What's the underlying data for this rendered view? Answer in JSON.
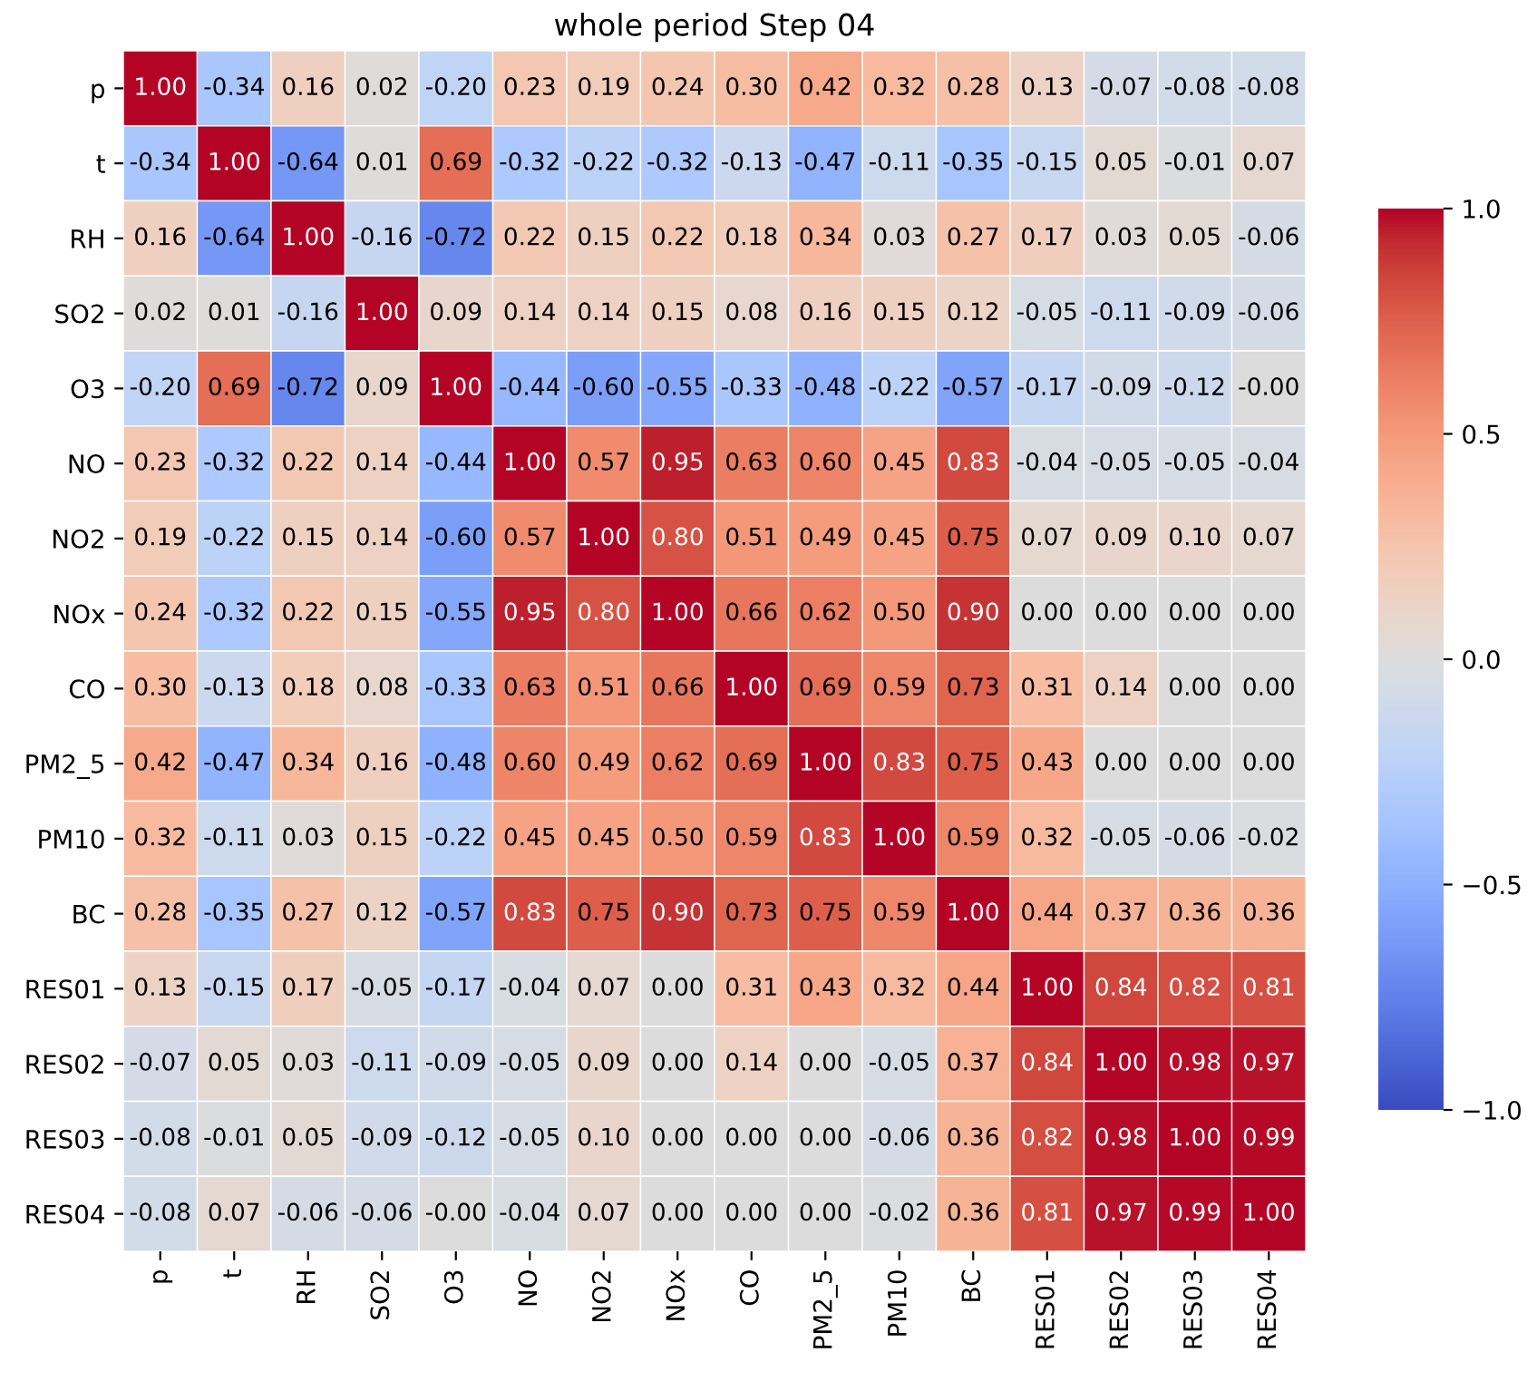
{
  "chart_data": {
    "type": "heatmap",
    "title": "whole period Step 04",
    "categories": [
      "p",
      "t",
      "RH",
      "SO2",
      "O3",
      "NO",
      "NO2",
      "NOx",
      "CO",
      "PM2_5",
      "PM10",
      "BC",
      "RES01",
      "RES02",
      "RES03",
      "RES04"
    ],
    "y_categories": [
      "p",
      "t",
      "RH",
      "SO2",
      "O3",
      "NO",
      "NO2",
      "NOx",
      "CO",
      "PM2_5",
      "PM10",
      "BC",
      "RES01",
      "RES02",
      "RES03",
      "RES04"
    ],
    "cells": [
      [
        1.0,
        -0.34,
        0.16,
        0.02,
        -0.2,
        0.23,
        0.19,
        0.24,
        0.3,
        0.42,
        0.32,
        0.28,
        0.13,
        -0.07,
        -0.08,
        -0.08
      ],
      [
        -0.34,
        1.0,
        -0.64,
        0.01,
        0.69,
        -0.32,
        -0.22,
        -0.32,
        -0.13,
        -0.47,
        -0.11,
        -0.35,
        -0.15,
        0.05,
        -0.01,
        0.07
      ],
      [
        0.16,
        -0.64,
        1.0,
        -0.16,
        -0.72,
        0.22,
        0.15,
        0.22,
        0.18,
        0.34,
        0.03,
        0.27,
        0.17,
        0.03,
        0.05,
        -0.06
      ],
      [
        0.02,
        0.01,
        -0.16,
        1.0,
        0.09,
        0.14,
        0.14,
        0.15,
        0.08,
        0.16,
        0.15,
        0.12,
        -0.05,
        -0.11,
        -0.09,
        -0.06
      ],
      [
        -0.2,
        0.69,
        -0.72,
        0.09,
        1.0,
        -0.44,
        -0.6,
        -0.55,
        -0.33,
        -0.48,
        -0.22,
        -0.57,
        -0.17,
        -0.09,
        -0.12,
        -0.0
      ],
      [
        0.23,
        -0.32,
        0.22,
        0.14,
        -0.44,
        1.0,
        0.57,
        0.95,
        0.63,
        0.6,
        0.45,
        0.83,
        -0.04,
        -0.05,
        -0.05,
        -0.04
      ],
      [
        0.19,
        -0.22,
        0.15,
        0.14,
        -0.6,
        0.57,
        1.0,
        0.8,
        0.51,
        0.49,
        0.45,
        0.75,
        0.07,
        0.09,
        0.1,
        0.07
      ],
      [
        0.24,
        -0.32,
        0.22,
        0.15,
        -0.55,
        0.95,
        0.8,
        1.0,
        0.66,
        0.62,
        0.5,
        0.9,
        0.0,
        0.0,
        0.0,
        0.0
      ],
      [
        0.3,
        -0.13,
        0.18,
        0.08,
        -0.33,
        0.63,
        0.51,
        0.66,
        1.0,
        0.69,
        0.59,
        0.73,
        0.31,
        0.14,
        0.0,
        0.0
      ],
      [
        0.42,
        -0.47,
        0.34,
        0.16,
        -0.48,
        0.6,
        0.49,
        0.62,
        0.69,
        1.0,
        0.83,
        0.75,
        0.43,
        0.0,
        0.0,
        0.0
      ],
      [
        0.32,
        -0.11,
        0.03,
        0.15,
        -0.22,
        0.45,
        0.45,
        0.5,
        0.59,
        0.83,
        1.0,
        0.59,
        0.32,
        -0.05,
        -0.06,
        -0.02
      ],
      [
        0.28,
        -0.35,
        0.27,
        0.12,
        -0.57,
        0.83,
        0.75,
        0.9,
        0.73,
        0.75,
        0.59,
        1.0,
        0.44,
        0.37,
        0.36,
        0.36
      ],
      [
        0.13,
        -0.15,
        0.17,
        -0.05,
        -0.17,
        -0.04,
        0.07,
        0.0,
        0.31,
        0.43,
        0.32,
        0.44,
        1.0,
        0.84,
        0.82,
        0.81
      ],
      [
        -0.07,
        0.05,
        0.03,
        -0.11,
        -0.09,
        -0.05,
        0.09,
        0.0,
        0.14,
        0.0,
        -0.05,
        0.37,
        0.84,
        1.0,
        0.98,
        0.97
      ],
      [
        -0.08,
        -0.01,
        0.05,
        -0.09,
        -0.12,
        -0.05,
        0.1,
        0.0,
        0.0,
        0.0,
        -0.06,
        0.36,
        0.82,
        0.98,
        1.0,
        0.99
      ],
      [
        -0.08,
        0.07,
        -0.06,
        -0.06,
        -0.0,
        -0.04,
        0.07,
        0.0,
        0.0,
        0.0,
        -0.02,
        0.36,
        0.81,
        0.97,
        0.99,
        1.0
      ]
    ],
    "cell_labels": [
      [
        "1.00",
        "-0.34",
        "0.16",
        "0.02",
        "-0.20",
        "0.23",
        "0.19",
        "0.24",
        "0.30",
        "0.42",
        "0.32",
        "0.28",
        "0.13",
        "-0.07",
        "-0.08",
        "-0.08"
      ],
      [
        "-0.34",
        "1.00",
        "-0.64",
        "0.01",
        "0.69",
        "-0.32",
        "-0.22",
        "-0.32",
        "-0.13",
        "-0.47",
        "-0.11",
        "-0.35",
        "-0.15",
        "0.05",
        "-0.01",
        "0.07"
      ],
      [
        "0.16",
        "-0.64",
        "1.00",
        "-0.16",
        "-0.72",
        "0.22",
        "0.15",
        "0.22",
        "0.18",
        "0.34",
        "0.03",
        "0.27",
        "0.17",
        "0.03",
        "0.05",
        "-0.06"
      ],
      [
        "0.02",
        "0.01",
        "-0.16",
        "1.00",
        "0.09",
        "0.14",
        "0.14",
        "0.15",
        "0.08",
        "0.16",
        "0.15",
        "0.12",
        "-0.05",
        "-0.11",
        "-0.09",
        "-0.06"
      ],
      [
        "-0.20",
        "0.69",
        "-0.72",
        "0.09",
        "1.00",
        "-0.44",
        "-0.60",
        "-0.55",
        "-0.33",
        "-0.48",
        "-0.22",
        "-0.57",
        "-0.17",
        "-0.09",
        "-0.12",
        "-0.00"
      ],
      [
        "0.23",
        "-0.32",
        "0.22",
        "0.14",
        "-0.44",
        "1.00",
        "0.57",
        "0.95",
        "0.63",
        "0.60",
        "0.45",
        "0.83",
        "-0.04",
        "-0.05",
        "-0.05",
        "-0.04"
      ],
      [
        "0.19",
        "-0.22",
        "0.15",
        "0.14",
        "-0.60",
        "0.57",
        "1.00",
        "0.80",
        "0.51",
        "0.49",
        "0.45",
        "0.75",
        "0.07",
        "0.09",
        "0.10",
        "0.07"
      ],
      [
        "0.24",
        "-0.32",
        "0.22",
        "0.15",
        "-0.55",
        "0.95",
        "0.80",
        "1.00",
        "0.66",
        "0.62",
        "0.50",
        "0.90",
        "0.00",
        "0.00",
        "0.00",
        "0.00"
      ],
      [
        "0.30",
        "-0.13",
        "0.18",
        "0.08",
        "-0.33",
        "0.63",
        "0.51",
        "0.66",
        "1.00",
        "0.69",
        "0.59",
        "0.73",
        "0.31",
        "0.14",
        "0.00",
        "0.00"
      ],
      [
        "0.42",
        "-0.47",
        "0.34",
        "0.16",
        "-0.48",
        "0.60",
        "0.49",
        "0.62",
        "0.69",
        "1.00",
        "0.83",
        "0.75",
        "0.43",
        "0.00",
        "0.00",
        "0.00"
      ],
      [
        "0.32",
        "-0.11",
        "0.03",
        "0.15",
        "-0.22",
        "0.45",
        "0.45",
        "0.50",
        "0.59",
        "0.83",
        "1.00",
        "0.59",
        "0.32",
        "-0.05",
        "-0.06",
        "-0.02"
      ],
      [
        "0.28",
        "-0.35",
        "0.27",
        "0.12",
        "-0.57",
        "0.83",
        "0.75",
        "0.90",
        "0.73",
        "0.75",
        "0.59",
        "1.00",
        "0.44",
        "0.37",
        "0.36",
        "0.36"
      ],
      [
        "0.13",
        "-0.15",
        "0.17",
        "-0.05",
        "-0.17",
        "-0.04",
        "0.07",
        "0.00",
        "0.31",
        "0.43",
        "0.32",
        "0.44",
        "1.00",
        "0.84",
        "0.82",
        "0.81"
      ],
      [
        "-0.07",
        "0.05",
        "0.03",
        "-0.11",
        "-0.09",
        "-0.05",
        "0.09",
        "0.00",
        "0.14",
        "0.00",
        "-0.05",
        "0.37",
        "0.84",
        "1.00",
        "0.98",
        "0.97"
      ],
      [
        "-0.08",
        "-0.01",
        "0.05",
        "-0.09",
        "-0.12",
        "-0.05",
        "0.10",
        "0.00",
        "0.00",
        "0.00",
        "-0.06",
        "0.36",
        "0.82",
        "0.98",
        "1.00",
        "0.99"
      ],
      [
        "-0.08",
        "0.07",
        "-0.06",
        "-0.06",
        "-0.00",
        "-0.04",
        "0.07",
        "0.00",
        "0.00",
        "0.00",
        "-0.02",
        "0.36",
        "0.81",
        "0.97",
        "0.99",
        "1.00"
      ]
    ],
    "clim": [
      -1.0,
      1.0
    ],
    "cticks": [
      {
        "value": -1.0,
        "label": "−1.0"
      },
      {
        "value": -0.5,
        "label": "−0.5"
      },
      {
        "value": 0.0,
        "label": "0.0"
      },
      {
        "value": 0.5,
        "label": "0.5"
      },
      {
        "value": 1.0,
        "label": "1.0"
      }
    ]
  }
}
